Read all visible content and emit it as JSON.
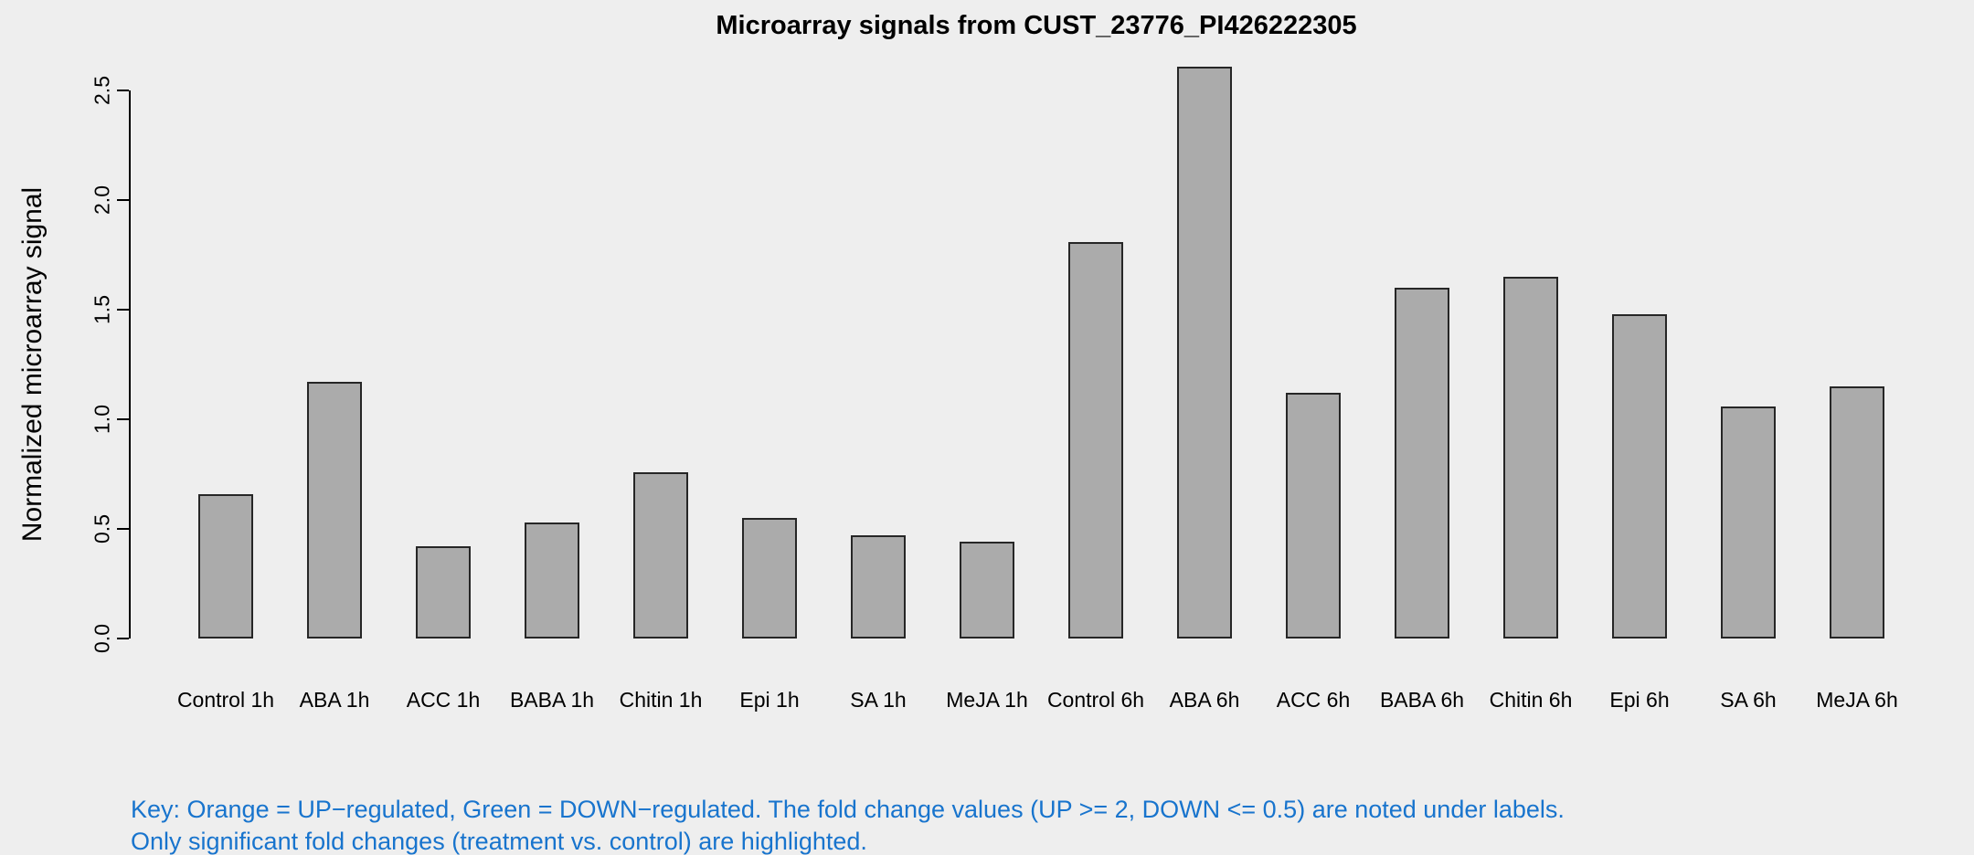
{
  "chart_data": {
    "type": "bar",
    "title": "Microarray signals from CUST_23776_PI426222305",
    "ylabel": "Normalized microarray signal",
    "xlabel": "",
    "categories": [
      "Control 1h",
      "ABA 1h",
      "ACC 1h",
      "BABA 1h",
      "Chitin 1h",
      "Epi 1h",
      "SA 1h",
      "MeJA 1h",
      "Control 6h",
      "ABA 6h",
      "ACC 6h",
      "BABA 6h",
      "Chitin 6h",
      "Epi 6h",
      "SA 6h",
      "MeJA 6h"
    ],
    "values": [
      0.66,
      1.17,
      0.42,
      0.53,
      0.76,
      0.55,
      0.47,
      0.44,
      1.81,
      2.61,
      1.12,
      1.6,
      1.65,
      1.48,
      1.06,
      1.15
    ],
    "ylim": [
      0,
      2.5
    ],
    "yticks": [
      0.0,
      0.5,
      1.0,
      1.5,
      2.0,
      2.5
    ],
    "ytick_labels": [
      "0.0",
      "0.5",
      "1.0",
      "1.5",
      "2.0",
      "2.5"
    ],
    "grid": false,
    "legend": null,
    "bar_fill": "#ABABAB",
    "bar_border": "#262626"
  },
  "key": {
    "line1": "Key: Orange = UP−regulated, Green = DOWN−regulated. The fold change values (UP >= 2, DOWN <= 0.5) are noted under labels.",
    "line2": "Only significant fold changes (treatment vs. control) are highlighted.",
    "color": "#1874CD"
  },
  "colors": {
    "background": "#EEEEEE",
    "axis": "#000000",
    "text": "#000000",
    "key_text": "#1874CD"
  }
}
